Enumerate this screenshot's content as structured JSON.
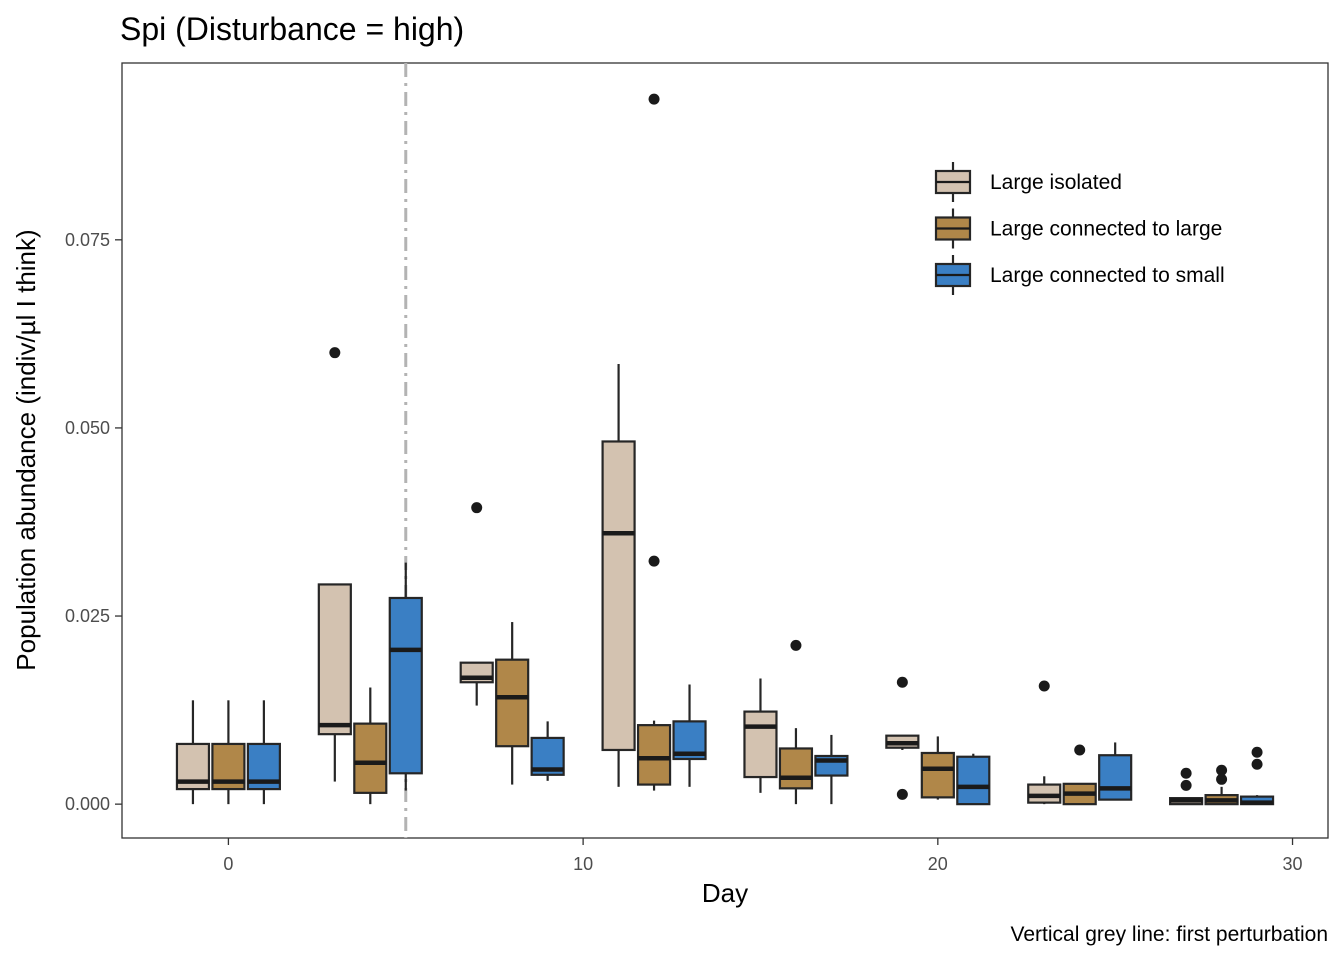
{
  "title": "Spi (Disturbance = high)",
  "caption": "Vertical grey line: first perturbation",
  "chart_data": {
    "type": "boxplot",
    "title": "Spi (Disturbance = high)",
    "xlabel": "Day",
    "ylabel": "Population abundance (indiv/µl I think)",
    "xlim": [
      -3,
      31
    ],
    "ylim": [
      -0.0045,
      0.0985
    ],
    "x_ticks": [
      0,
      10,
      20,
      30
    ],
    "y_ticks": [
      0.0,
      0.025,
      0.05,
      0.075
    ],
    "y_tick_labels": [
      "0.000",
      "0.025",
      "0.050",
      "0.075"
    ],
    "grid": false,
    "legend_position": "top-right inside",
    "vline": {
      "x": 5,
      "color": "#b3b3b3",
      "style": "dash-dot",
      "meaning": "first perturbation"
    },
    "series": [
      {
        "name": "Large isolated",
        "color": "#d3c2b0",
        "offset": -1,
        "boxes": [
          {
            "day": 0,
            "low": 0.0,
            "q1": 0.002,
            "median": 0.003,
            "q3": 0.008,
            "high": 0.0138,
            "outliers": []
          },
          {
            "day": 4,
            "low": 0.003,
            "q1": 0.0093,
            "median": 0.0105,
            "q3": 0.0292,
            "high": 0.0292,
            "outliers": [
              0.06
            ]
          },
          {
            "day": 8,
            "low": 0.0131,
            "q1": 0.0162,
            "median": 0.0168,
            "q3": 0.0188,
            "high": 0.0188,
            "outliers": [
              0.0394
            ]
          },
          {
            "day": 12,
            "low": 0.0023,
            "q1": 0.0072,
            "median": 0.036,
            "q3": 0.0482,
            "high": 0.0585,
            "outliers": []
          },
          {
            "day": 16,
            "low": 0.0015,
            "q1": 0.0036,
            "median": 0.0103,
            "q3": 0.0123,
            "high": 0.0167,
            "outliers": []
          },
          {
            "day": 20,
            "low": 0.0072,
            "q1": 0.0075,
            "median": 0.0081,
            "q3": 0.0091,
            "high": 0.0091,
            "outliers": [
              0.0162,
              0.0013
            ]
          },
          {
            "day": 24,
            "low": 0.0,
            "q1": 0.0002,
            "median": 0.0011,
            "q3": 0.0026,
            "high": 0.0037,
            "outliers": [
              0.0157
            ]
          },
          {
            "day": 28,
            "low": 0.0,
            "q1": 0.0,
            "median": 0.0005,
            "q3": 0.0008,
            "high": 0.0008,
            "outliers": [
              0.0041,
              0.0025
            ]
          }
        ]
      },
      {
        "name": "Large connected to large",
        "color": "#b08749",
        "offset": 0,
        "boxes": [
          {
            "day": 0,
            "low": 0.0,
            "q1": 0.002,
            "median": 0.003,
            "q3": 0.008,
            "high": 0.0138,
            "outliers": []
          },
          {
            "day": 4,
            "low": 0.0,
            "q1": 0.0015,
            "median": 0.0055,
            "q3": 0.0107,
            "high": 0.0155,
            "outliers": []
          },
          {
            "day": 8,
            "low": 0.0026,
            "q1": 0.0077,
            "median": 0.0142,
            "q3": 0.0192,
            "high": 0.0242,
            "outliers": []
          },
          {
            "day": 12,
            "low": 0.0018,
            "q1": 0.0026,
            "median": 0.0061,
            "q3": 0.0105,
            "high": 0.0111,
            "outliers": [
              0.0937,
              0.0323
            ]
          },
          {
            "day": 16,
            "low": 0.0,
            "q1": 0.0021,
            "median": 0.0035,
            "q3": 0.0074,
            "high": 0.0101,
            "outliers": [
              0.0211
            ]
          },
          {
            "day": 20,
            "low": 0.0006,
            "q1": 0.0009,
            "median": 0.0047,
            "q3": 0.0068,
            "high": 0.009,
            "outliers": []
          },
          {
            "day": 24,
            "low": 0.0,
            "q1": 0.0,
            "median": 0.0014,
            "q3": 0.0027,
            "high": 0.0027,
            "outliers": [
              0.0072
            ]
          },
          {
            "day": 28,
            "low": 0.0,
            "q1": 0.0,
            "median": 0.0005,
            "q3": 0.0012,
            "high": 0.0023,
            "outliers": [
              0.0045,
              0.0033
            ]
          }
        ]
      },
      {
        "name": "Large connected to small",
        "color": "#3a7fc4",
        "offset": 1,
        "boxes": [
          {
            "day": 0,
            "low": 0.0,
            "q1": 0.002,
            "median": 0.003,
            "q3": 0.008,
            "high": 0.0138,
            "outliers": []
          },
          {
            "day": 4,
            "low": 0.0018,
            "q1": 0.0041,
            "median": 0.0205,
            "q3": 0.0274,
            "high": 0.0321,
            "outliers": []
          },
          {
            "day": 8,
            "low": 0.0031,
            "q1": 0.0039,
            "median": 0.0046,
            "q3": 0.0088,
            "high": 0.011,
            "outliers": []
          },
          {
            "day": 12,
            "low": 0.0023,
            "q1": 0.006,
            "median": 0.0067,
            "q3": 0.011,
            "high": 0.0159,
            "outliers": []
          },
          {
            "day": 16,
            "low": 0.0,
            "q1": 0.0038,
            "median": 0.0058,
            "q3": 0.0064,
            "high": 0.0092,
            "outliers": []
          },
          {
            "day": 20,
            "low": 0.0,
            "q1": 0.0,
            "median": 0.0023,
            "q3": 0.0063,
            "high": 0.0067,
            "outliers": []
          },
          {
            "day": 24,
            "low": 0.0006,
            "q1": 0.0006,
            "median": 0.0021,
            "q3": 0.0065,
            "high": 0.0082,
            "outliers": []
          },
          {
            "day": 28,
            "low": 0.0,
            "q1": 0.0,
            "median": 0.0002,
            "q3": 0.001,
            "high": 0.0012,
            "outliers": [
              0.0069,
              0.0053
            ]
          }
        ]
      }
    ]
  }
}
